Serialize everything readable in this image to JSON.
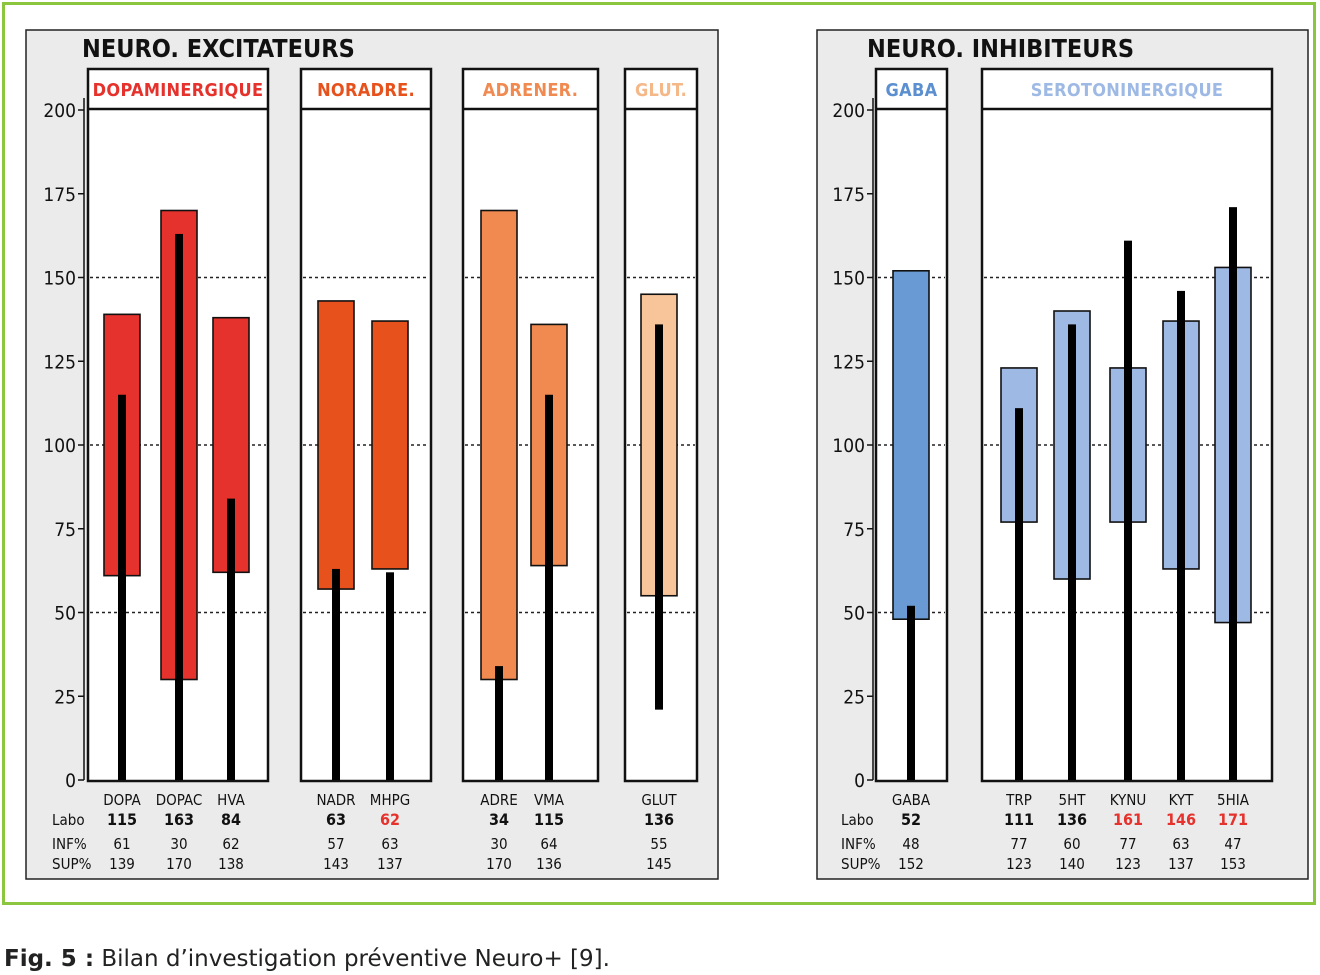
{
  "caption": {
    "label": "Fig. 5 :",
    "text": "Bilan d’investigation préventive Neuro+ [9]."
  },
  "colors": {
    "frame": "#8cc63f",
    "panel_bg": "#ebebeb",
    "dopaminergique": "#e5322d",
    "noradre": "#e7511c",
    "adrener": "#f08a51",
    "glut": "#f8c49a",
    "gaba": "#6a9ad3",
    "serotoninergique": "#9db9e4",
    "alert_text": "#e5322d"
  },
  "row_labels": {
    "labo": "Labo",
    "inf": "INF%",
    "sup": "SUP%"
  },
  "chart_data": [
    {
      "type": "bar",
      "title": "NEURO. EXCITATEURS",
      "ylim": [
        0,
        200
      ],
      "yticks": [
        0,
        25,
        50,
        75,
        100,
        125,
        150,
        175,
        200
      ],
      "reference_lines": [
        50,
        100,
        150
      ],
      "groups": [
        {
          "name": "DOPAMINERGIQUE",
          "color": "#e5322d",
          "name_color": "#e5322d",
          "items": [
            {
              "name": "DOPA",
              "labo": 115,
              "inf": 61,
              "sup": 139,
              "alert": false
            },
            {
              "name": "DOPAC",
              "labo": 163,
              "inf": 30,
              "sup": 170,
              "alert": false
            },
            {
              "name": "HVA",
              "labo": 84,
              "inf": 62,
              "sup": 138,
              "alert": false
            }
          ]
        },
        {
          "name": "NORADRE.",
          "color": "#e7511c",
          "name_color": "#e7511c",
          "items": [
            {
              "name": "NADR",
              "labo": 63,
              "inf": 57,
              "sup": 143,
              "alert": false
            },
            {
              "name": "MHPG",
              "labo": 62,
              "inf": 63,
              "sup": 137,
              "alert": true
            }
          ]
        },
        {
          "name": "ADRENER.",
          "color": "#f08a51",
          "name_color": "#f08a51",
          "items": [
            {
              "name": "ADRE",
              "labo": 34,
              "inf": 30,
              "sup": 170,
              "alert": false
            },
            {
              "name": "VMA",
              "labo": 115,
              "inf": 64,
              "sup": 136,
              "alert": false
            }
          ]
        },
        {
          "name": "GLUT.",
          "color": "#f8c49a",
          "name_color": "#f5b889",
          "items": [
            {
              "name": "GLUT",
              "labo": 136,
              "inf": 55,
              "sup": 145,
              "alert": false,
              "low": 21
            }
          ]
        }
      ]
    },
    {
      "type": "bar",
      "title": "NEURO. INHIBITEURS",
      "ylim": [
        0,
        200
      ],
      "yticks": [
        0,
        25,
        50,
        75,
        100,
        125,
        150,
        175,
        200
      ],
      "reference_lines": [
        50,
        100,
        150
      ],
      "groups": [
        {
          "name": "GABA",
          "color": "#6a9ad3",
          "name_color": "#5b8fcf",
          "items": [
            {
              "name": "GABA",
              "labo": 52,
              "inf": 48,
              "sup": 152,
              "alert": false
            }
          ]
        },
        {
          "name": "SEROTONINERGIQUE",
          "color": "#9db9e4",
          "name_color": "#9db9e4",
          "items": [
            {
              "name": "TRP",
              "labo": 111,
              "inf": 77,
              "sup": 123,
              "alert": false
            },
            {
              "name": "5HT",
              "labo": 136,
              "inf": 60,
              "sup": 140,
              "alert": false
            },
            {
              "name": "KYNU",
              "labo": 161,
              "inf": 77,
              "sup": 123,
              "alert": true
            },
            {
              "name": "KYT",
              "labo": 146,
              "inf": 63,
              "sup": 137,
              "alert": true
            },
            {
              "name": "5HIA",
              "labo": 171,
              "inf": 47,
              "sup": 153,
              "alert": true
            }
          ]
        }
      ]
    }
  ]
}
